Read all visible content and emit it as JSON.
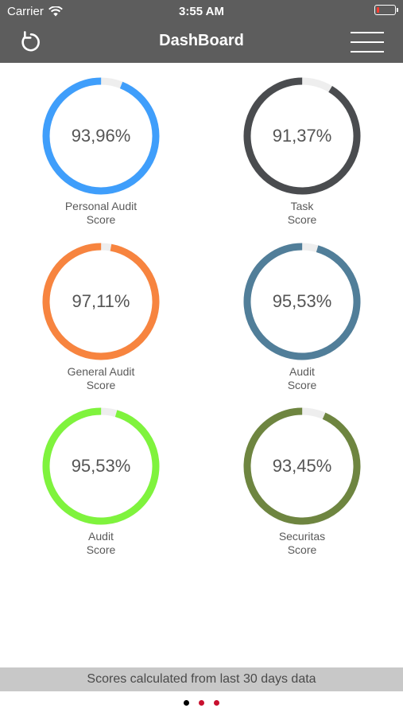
{
  "status_bar": {
    "carrier": "Carrier",
    "time": "3:55 AM",
    "battery_level": 0.15,
    "battery_color": "#ff3b30"
  },
  "nav": {
    "title": "DashBoard",
    "refresh_icon": "refresh-icon",
    "menu_icon": "hamburger-menu-icon"
  },
  "scores": [
    {
      "value": "93,96%",
      "fraction": 0.9396,
      "label_line1": "Personal Audit",
      "label_line2": "Score",
      "color": "#3f9efb"
    },
    {
      "value": "91,37%",
      "fraction": 0.9137,
      "label_line1": "Task",
      "label_line2": "Score",
      "color": "#4a4c4f"
    },
    {
      "value": "97,11%",
      "fraction": 0.9711,
      "label_line1": "General Audit",
      "label_line2": "Score",
      "color": "#f7843f"
    },
    {
      "value": "95,53%",
      "fraction": 0.9553,
      "label_line1": "Audit",
      "label_line2": "Score",
      "color": "#517e99"
    },
    {
      "value": "95,53%",
      "fraction": 0.9553,
      "label_line1": "Audit",
      "label_line2": "Score",
      "color": "#7ff33d"
    },
    {
      "value": "93,45%",
      "fraction": 0.9345,
      "label_line1": "Securitas",
      "label_line2": "Score",
      "color": "#6e8540"
    }
  ],
  "ring_track_color": "#eeeeee",
  "footer": {
    "text": "Scores calculated from last 30 days data"
  },
  "page_dots": [
    {
      "color": "#000000",
      "active": true
    },
    {
      "color": "#c8102e",
      "active": false
    },
    {
      "color": "#c8102e",
      "active": false
    }
  ]
}
